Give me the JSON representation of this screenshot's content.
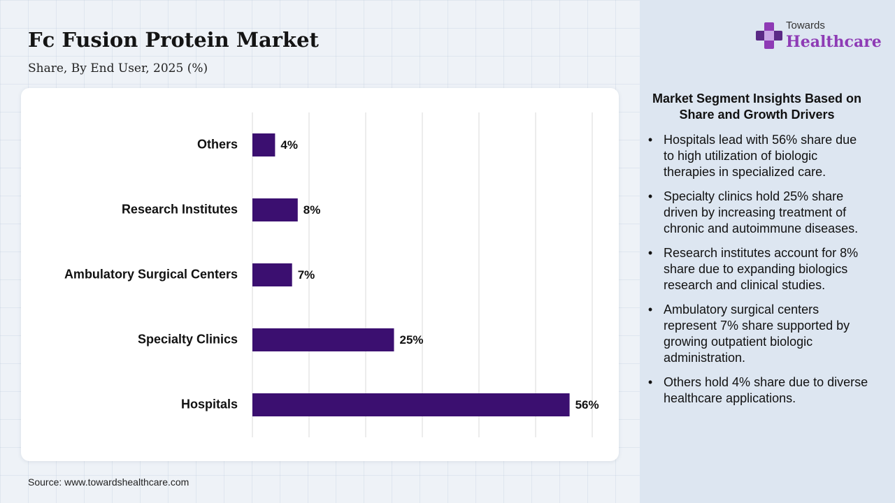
{
  "header": {
    "title": "Fc Fusion Protein Market",
    "subtitle": "Share, By End User, 2025 (%)"
  },
  "logo": {
    "line1": "Towards",
    "line2": "Healthcare",
    "icon": "plus-cross-icon"
  },
  "chart_data": {
    "type": "bar",
    "orientation": "horizontal",
    "categories": [
      "Others",
      "Research Institutes",
      "Ambulatory Surgical Centers",
      "Specialty Clinics",
      "Hospitals"
    ],
    "values": [
      4,
      8,
      7,
      25,
      56
    ],
    "data_labels": [
      "4%",
      "8%",
      "7%",
      "25%",
      "56%"
    ],
    "xlim": [
      0,
      60
    ],
    "grid": true,
    "bar_color": "#3b0f70"
  },
  "insights": {
    "title": "Market Segment Insights Based on Share and Growth Drivers",
    "items": [
      "Hospitals lead with 56% share due to high utilization of biologic therapies in specialized care.",
      "Specialty clinics hold 25% share driven by increasing treatment of chronic and autoimmune diseases.",
      "Research institutes account for 8% share due to expanding biologics research and clinical studies.",
      "Ambulatory surgical centers represent 7% share supported by growing outpatient biologic administration.",
      "Others hold 4% share due to diverse healthcare applications."
    ]
  },
  "source": "Source: www.towardshealthcare.com",
  "colors": {
    "accent": "#8e3bb5",
    "bar": "#3b0f70",
    "side_panel": "#dde6f1"
  }
}
